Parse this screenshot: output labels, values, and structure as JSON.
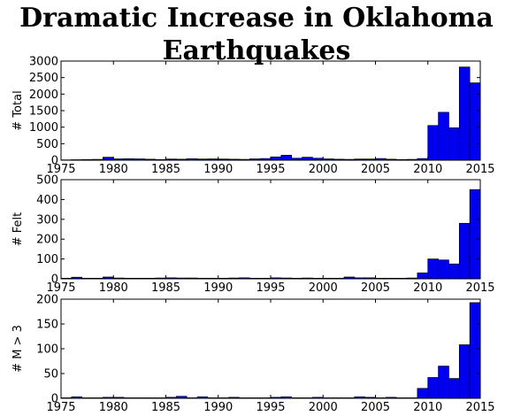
{
  "title": "Dramatic Increase in Oklahoma Earthquakes",
  "colors": {
    "bar": "#0000ee",
    "edge": "#000000"
  },
  "chart_data": [
    {
      "type": "bar",
      "ylabel": "# Total",
      "xlim": [
        1975,
        2015
      ],
      "ylim": [
        0,
        3000
      ],
      "xticks": [
        "1975",
        "1980",
        "1985",
        "1990",
        "1995",
        "2000",
        "2005",
        "2010",
        "2015"
      ],
      "yticks": [
        "0",
        "500",
        "1000",
        "1500",
        "2000",
        "2500",
        "3000"
      ],
      "x": [
        1975,
        1976,
        1977,
        1978,
        1979,
        1980,
        1981,
        1982,
        1983,
        1984,
        1985,
        1986,
        1987,
        1988,
        1989,
        1990,
        1991,
        1992,
        1993,
        1994,
        1995,
        1996,
        1997,
        1998,
        1999,
        2000,
        2001,
        2002,
        2003,
        2004,
        2005,
        2006,
        2007,
        2008,
        2009,
        2010,
        2011,
        2012,
        2013,
        2014
      ],
      "values": [
        10,
        15,
        20,
        25,
        90,
        40,
        45,
        40,
        30,
        20,
        35,
        30,
        45,
        35,
        40,
        35,
        30,
        25,
        40,
        50,
        100,
        150,
        60,
        90,
        60,
        40,
        30,
        25,
        35,
        35,
        50,
        30,
        20,
        25,
        50,
        1050,
        1450,
        980,
        2820,
        2340
      ]
    },
    {
      "type": "bar",
      "ylabel": "# Felt",
      "xlim": [
        1975,
        2015
      ],
      "ylim": [
        0,
        500
      ],
      "xticks": [
        "1975",
        "1980",
        "1985",
        "1990",
        "1995",
        "2000",
        "2005",
        "2010",
        "2015"
      ],
      "yticks": [
        "0",
        "100",
        "200",
        "300",
        "400",
        "500"
      ],
      "x": [
        1975,
        1976,
        1977,
        1978,
        1979,
        1980,
        1981,
        1982,
        1983,
        1984,
        1985,
        1986,
        1987,
        1988,
        1989,
        1990,
        1991,
        1992,
        1993,
        1994,
        1995,
        1996,
        1997,
        1998,
        1999,
        2000,
        2001,
        2002,
        2003,
        2004,
        2005,
        2006,
        2007,
        2008,
        2009,
        2010,
        2011,
        2012,
        2013,
        2014
      ],
      "values": [
        3,
        8,
        3,
        3,
        9,
        4,
        3,
        3,
        3,
        4,
        5,
        4,
        4,
        3,
        3,
        3,
        4,
        5,
        3,
        3,
        5,
        4,
        3,
        4,
        3,
        3,
        3,
        9,
        5,
        5,
        3,
        3,
        3,
        4,
        30,
        100,
        95,
        75,
        280,
        450
      ]
    },
    {
      "type": "bar",
      "ylabel": "# M > 3",
      "xlim": [
        1975,
        2015
      ],
      "ylim": [
        0,
        200
      ],
      "xticks": [
        "1975",
        "1980",
        "1985",
        "1990",
        "1995",
        "2000",
        "2005",
        "2010",
        "2015"
      ],
      "yticks": [
        "0",
        "50",
        "100",
        "150",
        "200"
      ],
      "x": [
        1975,
        1976,
        1977,
        1978,
        1979,
        1980,
        1981,
        1982,
        1983,
        1984,
        1985,
        1986,
        1987,
        1988,
        1989,
        1990,
        1991,
        1992,
        1993,
        1994,
        1995,
        1996,
        1997,
        1998,
        1999,
        2000,
        2001,
        2002,
        2003,
        2004,
        2005,
        2006,
        2007,
        2008,
        2009,
        2010,
        2011,
        2012,
        2013,
        2014
      ],
      "values": [
        1,
        3,
        1,
        1,
        2,
        2,
        1,
        1,
        1,
        1,
        2,
        4,
        1,
        3,
        1,
        1,
        2,
        1,
        1,
        1,
        2,
        3,
        1,
        1,
        2,
        1,
        1,
        1,
        3,
        2,
        1,
        2,
        1,
        1,
        20,
        42,
        65,
        40,
        108,
        193
      ]
    }
  ]
}
